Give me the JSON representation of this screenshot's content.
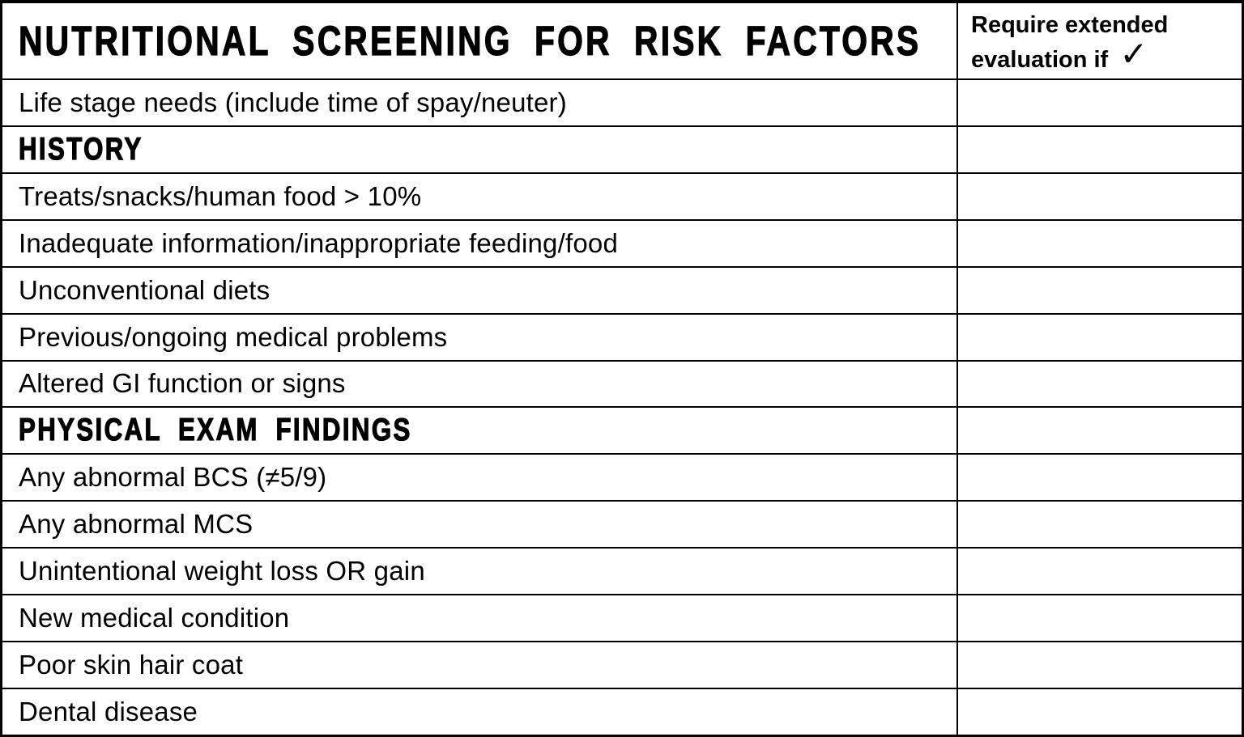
{
  "colors": {
    "border": "#000000",
    "background": "#ffffff",
    "text": "#000000"
  },
  "table": {
    "header": {
      "title": "NUTRITIONAL SCREENING FOR RISK FACTORS",
      "right_column": {
        "line1": "Require extended",
        "line2": "evaluation if",
        "check_glyph": "✓"
      }
    },
    "rows": [
      {
        "label": "Life stage needs (include time of spay/neuter)",
        "type": "item",
        "checked": false
      },
      {
        "label": "HISTORY",
        "type": "section",
        "checked": false
      },
      {
        "label": "Treats/snacks/human food > 10%",
        "type": "item",
        "checked": false
      },
      {
        "label": "Inadequate information/inappropriate feeding/food",
        "type": "item",
        "checked": false
      },
      {
        "label": "Unconventional diets",
        "type": "item",
        "checked": false
      },
      {
        "label": "Previous/ongoing medical problems",
        "type": "item",
        "checked": false
      },
      {
        "label": "Altered GI function or signs",
        "type": "item",
        "checked": false
      },
      {
        "label": "PHYSICAL EXAM FINDINGS",
        "type": "section",
        "checked": false
      },
      {
        "label": "Any abnormal BCS (≠5/9)",
        "type": "item",
        "checked": false
      },
      {
        "label": "Any abnormal MCS",
        "type": "item",
        "checked": false
      },
      {
        "label": "Unintentional weight loss OR gain",
        "type": "item",
        "checked": false
      },
      {
        "label": "New medical condition",
        "type": "item",
        "checked": false
      },
      {
        "label": "Poor skin hair coat",
        "type": "item",
        "checked": false
      },
      {
        "label": "Dental disease",
        "type": "item",
        "checked": false
      }
    ]
  }
}
